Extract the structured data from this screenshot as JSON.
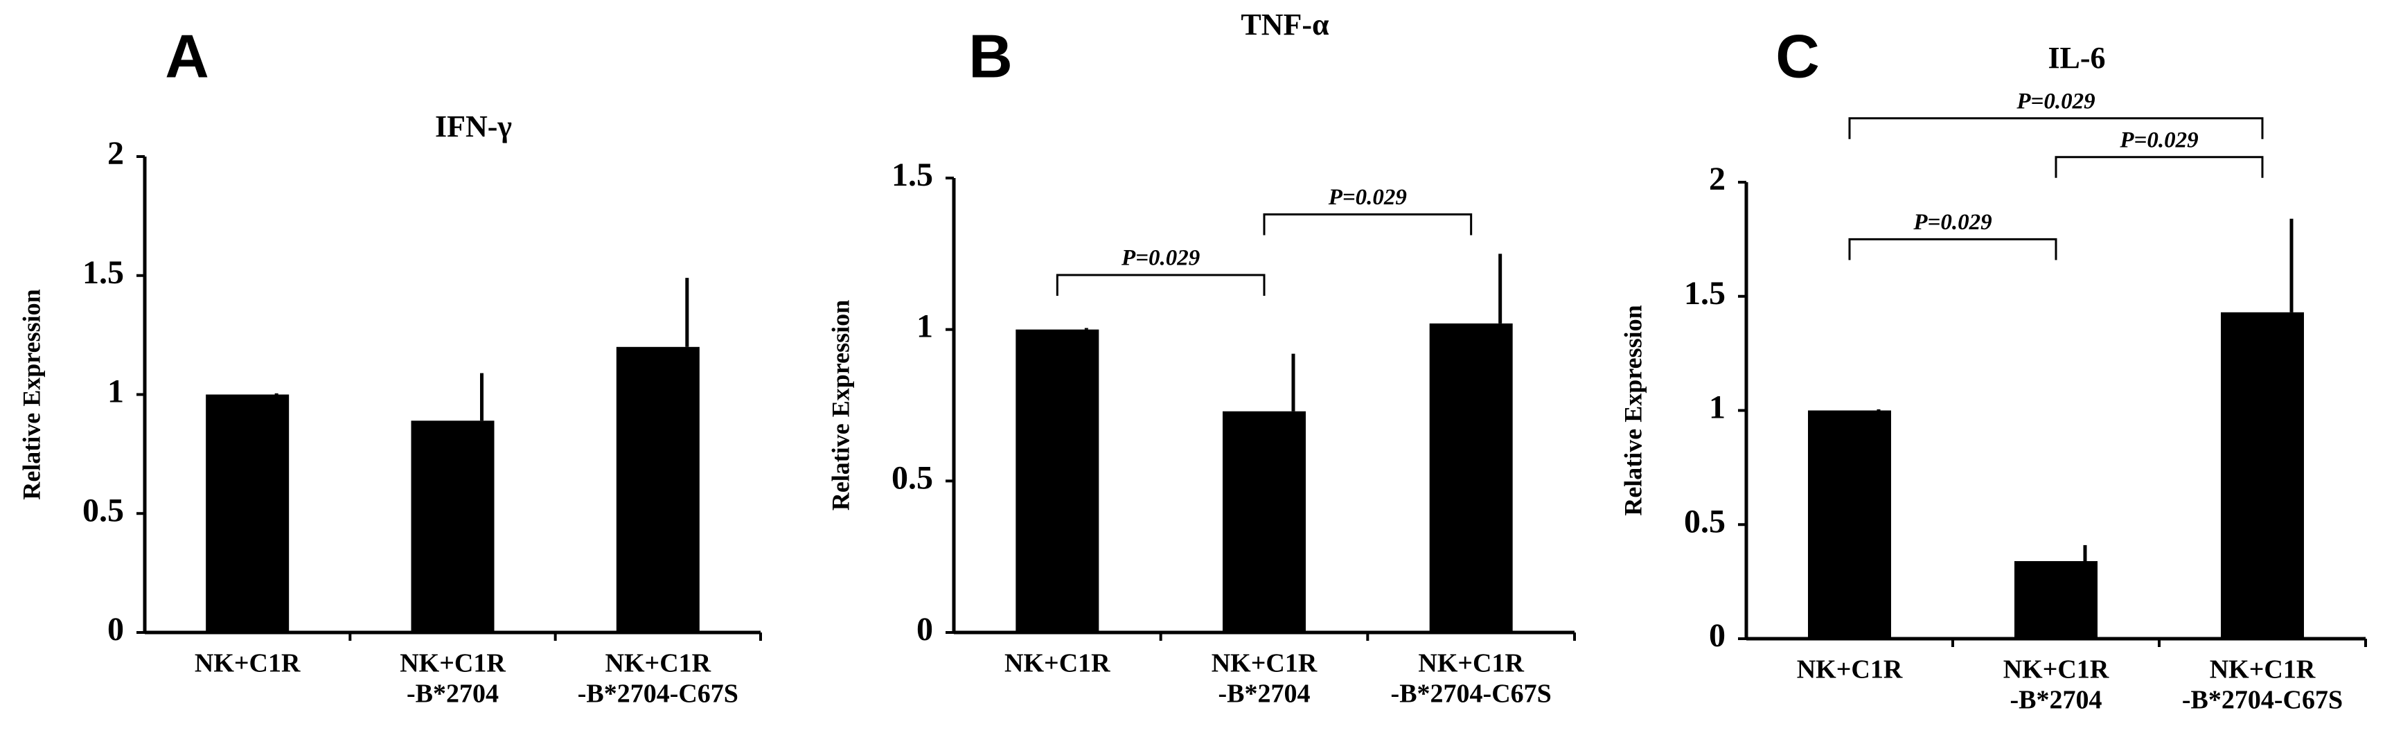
{
  "chart_data": [
    {
      "type": "bar",
      "panel": "A",
      "title": "IFN-γ",
      "ylabel": "Relative Expression",
      "categories": [
        [
          "NK+C1R"
        ],
        [
          "NK+C1R",
          "-B*2704"
        ],
        [
          "NK+C1R",
          "-B*2704-C67S"
        ]
      ],
      "values": [
        1,
        0.89,
        1.2
      ],
      "errors": [
        0.005,
        0.2,
        0.29
      ],
      "color": "#000000",
      "ylim": [
        0,
        2
      ],
      "yticks": [
        0,
        0.5,
        1,
        1.5,
        2
      ],
      "annotations": []
    },
    {
      "type": "bar",
      "panel": "B",
      "title": "TNF-α",
      "ylabel": "Relative Expression",
      "categories": [
        [
          "NK+C1R"
        ],
        [
          "NK+C1R",
          "-B*2704"
        ],
        [
          "NK+C1R",
          "-B*2704-C67S"
        ]
      ],
      "values": [
        1,
        0.73,
        1.02
      ],
      "errors": [
        0.005,
        0.19,
        0.23
      ],
      "color": "#000000",
      "ylim": [
        0,
        1.5
      ],
      "yticks": [
        0,
        0.5,
        1,
        1.5
      ],
      "annotations": [
        {
          "from": 0,
          "to": 1,
          "text": "P=0.029"
        },
        {
          "from": 1,
          "to": 2,
          "text": "P=0.029"
        }
      ]
    },
    {
      "type": "bar",
      "panel": "C",
      "title": "IL-6",
      "ylabel": "Relative Expression",
      "categories": [
        [
          "NK+C1R"
        ],
        [
          "NK+C1R",
          "-B*2704"
        ],
        [
          "NK+C1R",
          "-B*2704-C67S"
        ]
      ],
      "values": [
        1,
        0.34,
        1.43
      ],
      "errors": [
        0.005,
        0.07,
        0.41
      ],
      "color": "#000000",
      "ylim": [
        0,
        2
      ],
      "yticks": [
        0,
        0.5,
        1,
        1.5,
        2
      ],
      "annotations": [
        {
          "from": 0,
          "to": 1,
          "text": "P=0.029"
        },
        {
          "from": 1,
          "to": 2,
          "text": "P=0.029"
        },
        {
          "from": 0,
          "to": 2,
          "text": "P=0.029"
        }
      ]
    }
  ]
}
